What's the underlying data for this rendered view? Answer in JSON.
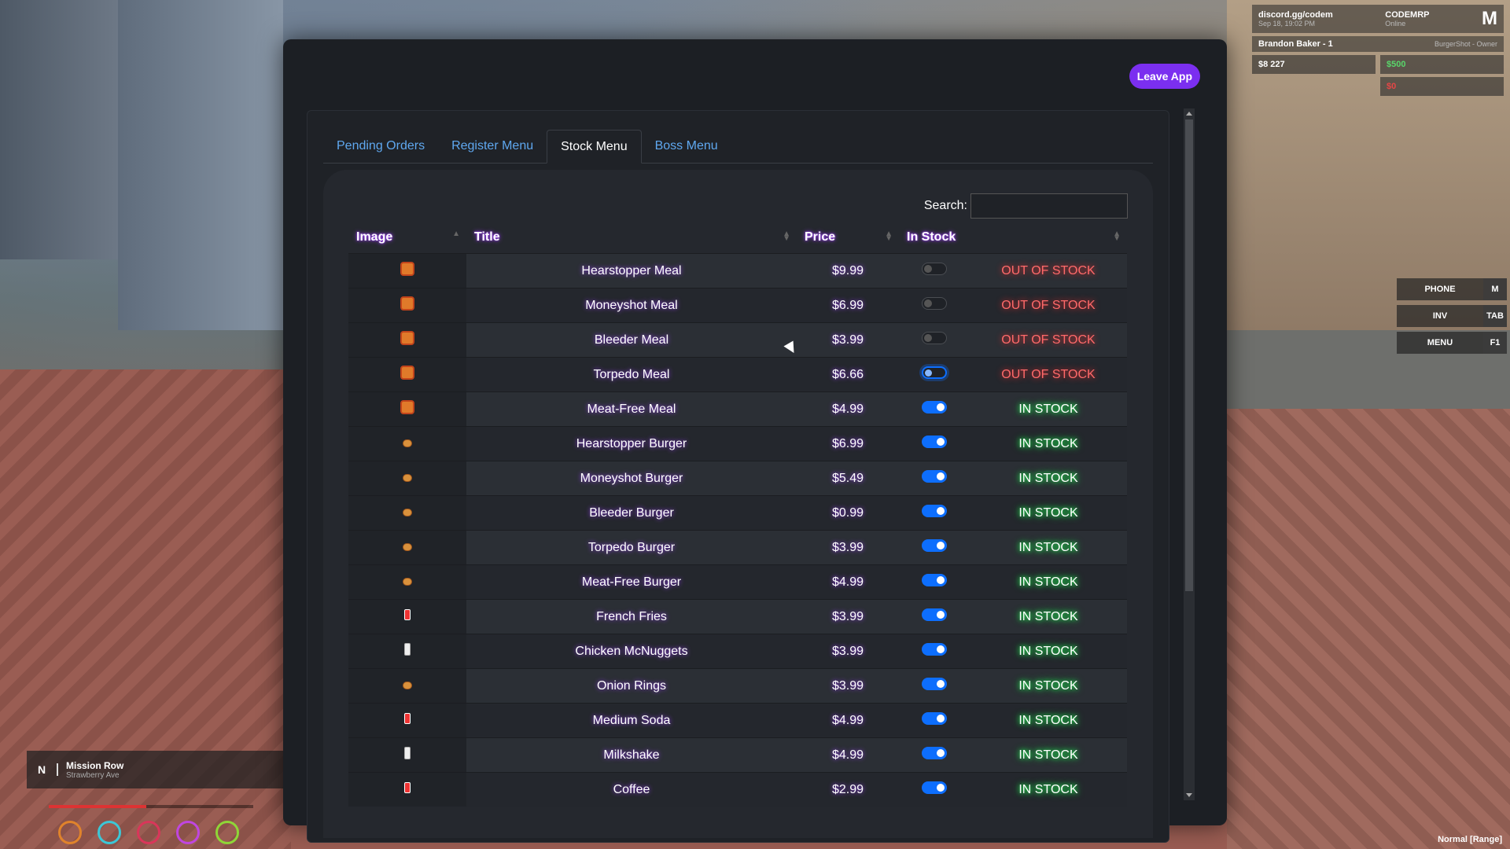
{
  "hud": {
    "server": "discord.gg/codem",
    "server_sub": "Sep 18, 19:02 PM",
    "brand": "CODEMRP",
    "brand_sub": "Online",
    "player": "Brandon Baker - 1",
    "job": "BurgerShot - Owner",
    "cash": "$8 227",
    "bank": "$500",
    "dirty": "$0",
    "keys": [
      {
        "label": "PHONE",
        "key": "M"
      },
      {
        "label": "INV",
        "key": "TAB"
      },
      {
        "label": "MENU",
        "key": "F1"
      }
    ],
    "compass": "N",
    "street": "Mission Row",
    "zone": "Strawberry Ave",
    "voice": "Normal [Range]"
  },
  "app": {
    "leave_label": "Leave App",
    "tabs": [
      {
        "label": "Pending Orders",
        "active": false
      },
      {
        "label": "Register Menu",
        "active": false
      },
      {
        "label": "Stock Menu",
        "active": true
      },
      {
        "label": "Boss Menu",
        "active": false
      }
    ],
    "search_label": "Search:",
    "search_value": "",
    "columns": {
      "image": "Image",
      "title": "Title",
      "price": "Price",
      "in_stock": "In Stock"
    },
    "rows": [
      {
        "icon": "meal-box-icon",
        "title": "Hearstopper Meal",
        "price": "$9.99",
        "toggle": "off",
        "status": "OUT OF STOCK"
      },
      {
        "icon": "meal-box-icon",
        "title": "Moneyshot Meal",
        "price": "$6.99",
        "toggle": "off",
        "status": "OUT OF STOCK"
      },
      {
        "icon": "meal-box-icon",
        "title": "Bleeder Meal",
        "price": "$3.99",
        "toggle": "off",
        "status": "OUT OF STOCK"
      },
      {
        "icon": "meal-box-icon",
        "title": "Torpedo Meal",
        "price": "$6.66",
        "toggle": "focus",
        "status": "OUT OF STOCK"
      },
      {
        "icon": "meal-box-icon",
        "title": "Meat-Free Meal",
        "price": "$4.99",
        "toggle": "on",
        "status": "IN STOCK"
      },
      {
        "icon": "burger-icon",
        "title": "Hearstopper Burger",
        "price": "$6.99",
        "toggle": "on",
        "status": "IN STOCK"
      },
      {
        "icon": "burger-icon",
        "title": "Moneyshot Burger",
        "price": "$5.49",
        "toggle": "on",
        "status": "IN STOCK"
      },
      {
        "icon": "burger-icon",
        "title": "Bleeder Burger",
        "price": "$0.99",
        "toggle": "on",
        "status": "IN STOCK"
      },
      {
        "icon": "burger-icon",
        "title": "Torpedo Burger",
        "price": "$3.99",
        "toggle": "on",
        "status": "IN STOCK"
      },
      {
        "icon": "burger-icon",
        "title": "Meat-Free Burger",
        "price": "$4.99",
        "toggle": "on",
        "status": "IN STOCK"
      },
      {
        "icon": "fries-icon",
        "title": "French Fries",
        "price": "$3.99",
        "toggle": "on",
        "status": "IN STOCK"
      },
      {
        "icon": "nuggets-icon",
        "title": "Chicken McNuggets",
        "price": "$3.99",
        "toggle": "on",
        "status": "IN STOCK"
      },
      {
        "icon": "onion-rings-icon",
        "title": "Onion Rings",
        "price": "$3.99",
        "toggle": "on",
        "status": "IN STOCK"
      },
      {
        "icon": "soda-icon",
        "title": "Medium Soda",
        "price": "$4.99",
        "toggle": "on",
        "status": "IN STOCK"
      },
      {
        "icon": "milkshake-icon",
        "title": "Milkshake",
        "price": "$4.99",
        "toggle": "on",
        "status": "IN STOCK"
      },
      {
        "icon": "coffee-icon",
        "title": "Coffee",
        "price": "$2.99",
        "toggle": "on",
        "status": "IN STOCK"
      }
    ]
  }
}
